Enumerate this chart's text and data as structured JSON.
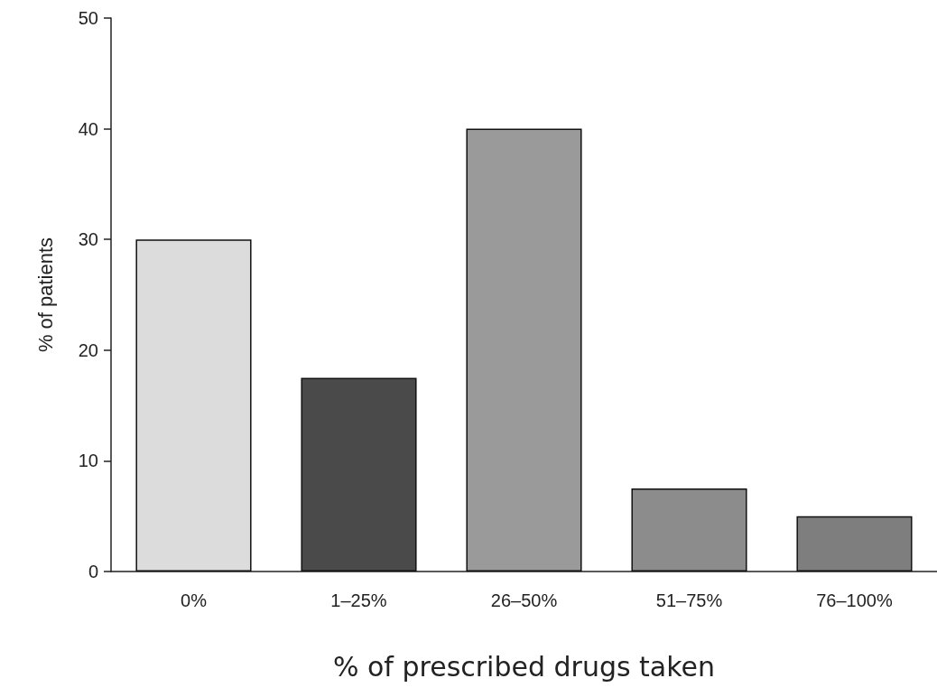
{
  "chart_data": {
    "type": "bar",
    "xlabel": "% of prescribed drugs taken",
    "ylabel": "% of patients",
    "categories": [
      "0%",
      "1–25%",
      "26–50%",
      "51–75%",
      "76–100%"
    ],
    "values": [
      30,
      17.5,
      40,
      7.5,
      5
    ],
    "colors": [
      "#dcdcdc",
      "#4a4a4a",
      "#9a9a9a",
      "#8c8c8c",
      "#7e7e7e"
    ],
    "ylim": [
      0,
      50
    ],
    "yticks": [
      0,
      10,
      20,
      30,
      40,
      50
    ],
    "grid": false
  }
}
